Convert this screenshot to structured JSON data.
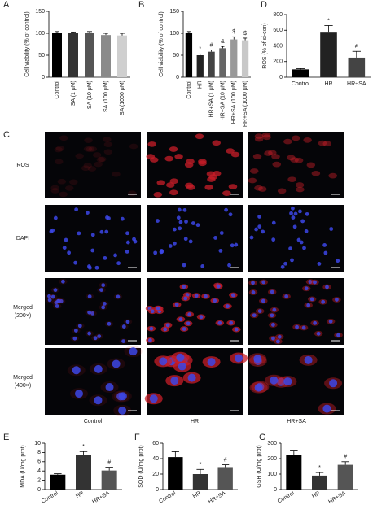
{
  "chart_data": [
    {
      "type": "bar",
      "panel": "A",
      "ylabel": "Cell viability (% of control)",
      "categories": [
        "Control",
        "SA (1 μM)",
        "SA (10 μM)",
        "SA (100 μM)",
        "SA (1000 μM)"
      ],
      "values": [
        100,
        100,
        100,
        96,
        95
      ],
      "errors": [
        4,
        3,
        4,
        4,
        5
      ],
      "colors": [
        "#000000",
        "#333333",
        "#555555",
        "#8a8a8a",
        "#cfcfcf"
      ],
      "ylim": [
        0,
        150
      ],
      "yticks": [
        0,
        50,
        100,
        150
      ]
    },
    {
      "type": "bar",
      "panel": "B",
      "ylabel": "Cell viability (% of control)",
      "categories": [
        "Control",
        "HR",
        "HR+SA (1 μM)",
        "HR+SA (10 μM)",
        "HR+SA (100 μM)",
        "HR+SA (1000 μM)"
      ],
      "values": [
        100,
        50,
        58,
        66,
        86,
        84
      ],
      "errors": [
        4,
        3,
        4,
        4,
        6,
        5
      ],
      "annotations": [
        null,
        "*",
        "#",
        "&",
        "$",
        "$"
      ],
      "colors": [
        "#000000",
        "#222222",
        "#444444",
        "#666666",
        "#999999",
        "#c8c8c8"
      ],
      "ylim": [
        0,
        150
      ],
      "yticks": [
        0,
        50,
        100,
        150
      ]
    },
    {
      "type": "bar",
      "panel": "D",
      "ylabel": "ROS (% of si-con)",
      "categories": [
        "Control",
        "HR",
        "HR+SA"
      ],
      "values": [
        100,
        580,
        250
      ],
      "errors": [
        10,
        80,
        80
      ],
      "annotations": [
        null,
        "*",
        "#"
      ],
      "colors": [
        "#000000",
        "#222222",
        "#444444"
      ],
      "ylim": [
        0,
        800
      ],
      "yticks": [
        0,
        200,
        400,
        600,
        800
      ]
    },
    {
      "type": "bar",
      "panel": "E",
      "ylabel": "MDA (U/mg prot)",
      "categories": [
        "Control",
        "HR",
        "HR+SA"
      ],
      "values": [
        3.2,
        7.5,
        4.1
      ],
      "errors": [
        0.2,
        0.7,
        0.7
      ],
      "annotations": [
        null,
        "*",
        "#"
      ],
      "colors": [
        "#000000",
        "#333333",
        "#555555"
      ],
      "ylim": [
        0,
        10
      ],
      "yticks": [
        0,
        2,
        4,
        6,
        8,
        10
      ]
    },
    {
      "type": "bar",
      "panel": "F",
      "ylabel": "SOD (U/mg prot)",
      "categories": [
        "Control",
        "HR",
        "HR+SA"
      ],
      "values": [
        42,
        20,
        29
      ],
      "errors": [
        7,
        6,
        3
      ],
      "annotations": [
        null,
        "*",
        "#"
      ],
      "colors": [
        "#000000",
        "#333333",
        "#555555"
      ],
      "ylim": [
        0,
        60
      ],
      "yticks": [
        0,
        20,
        40,
        60
      ]
    },
    {
      "type": "bar",
      "panel": "G",
      "ylabel": "GSH (U/mg prot)",
      "categories": [
        "Control",
        "HR",
        "HR+SA"
      ],
      "values": [
        225,
        90,
        160
      ],
      "errors": [
        30,
        20,
        20
      ],
      "annotations": [
        null,
        "*",
        "#"
      ],
      "colors": [
        "#000000",
        "#333333",
        "#555555"
      ],
      "ylim": [
        0,
        300
      ],
      "yticks": [
        0,
        100,
        200,
        300
      ]
    }
  ],
  "panel_c": {
    "panel": "C",
    "rows": [
      [
        "ROS"
      ],
      [
        "DAPI"
      ],
      [
        "Merged",
        "(200×)"
      ],
      [
        "Merged",
        "(400×)"
      ]
    ],
    "columns": [
      "Control",
      "HR",
      "HR+SA"
    ]
  }
}
